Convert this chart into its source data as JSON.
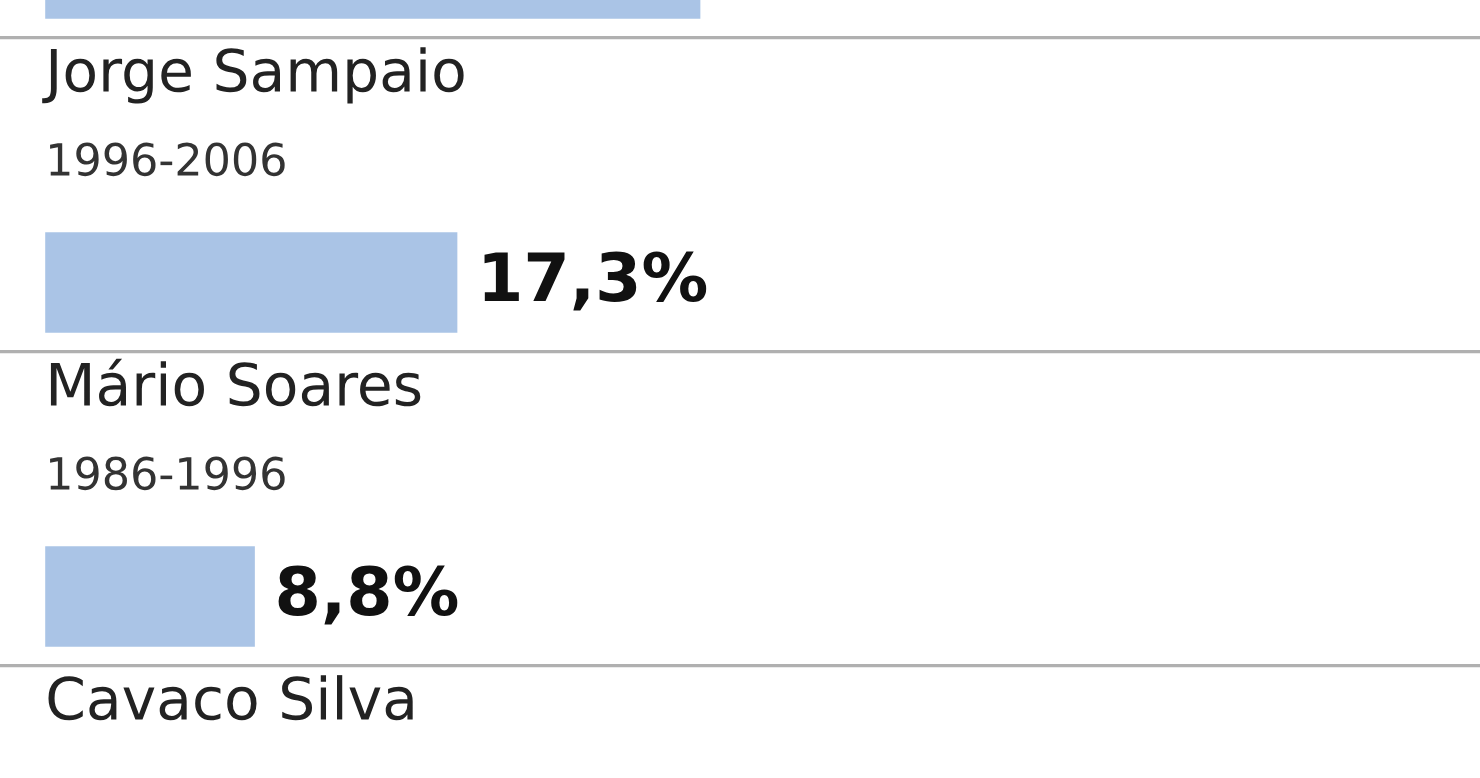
{
  "chart_data": {
    "type": "bar",
    "orientation": "horizontal",
    "categories": [
      null,
      "Jorge Sampaio\n1996-2006",
      "Mário Soares\n1986-1996",
      "Cavaco Silva"
    ],
    "values": [
      27.5,
      17.3,
      8.8,
      null
    ],
    "value_labels": [
      null,
      "17,3%",
      "8,8%",
      null
    ],
    "color": "#aac4e6"
  }
}
